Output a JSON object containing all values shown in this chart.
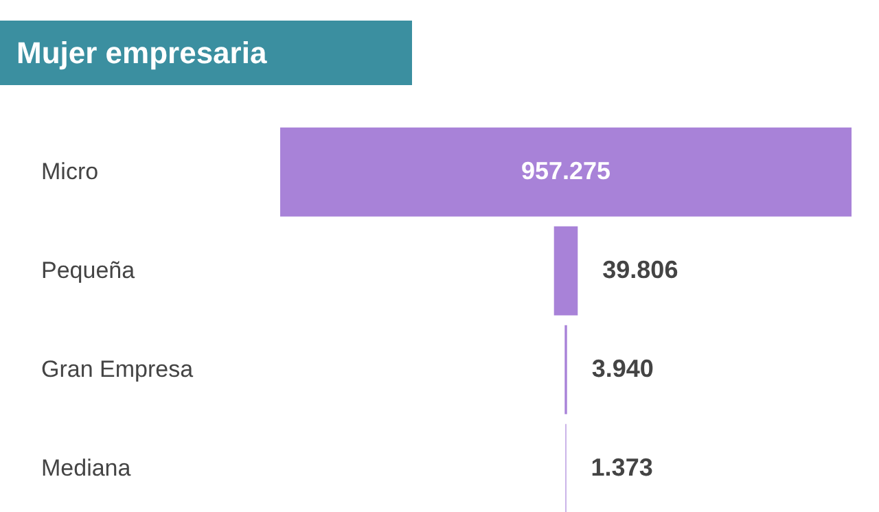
{
  "chart_data": {
    "type": "other",
    "title": "Mujer empresaria",
    "categories": [
      "Micro",
      "Pequeña",
      "Gran Empresa",
      "Mediana"
    ],
    "values": [
      957275,
      39806,
      3940,
      1373
    ],
    "value_labels": [
      "957.275",
      "39.806",
      "3.940",
      "1.373"
    ],
    "color": "#a882d8"
  }
}
